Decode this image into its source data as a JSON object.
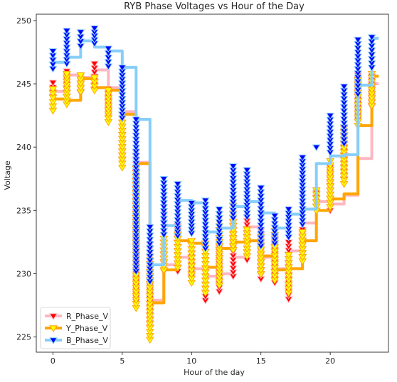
{
  "chart_data": {
    "type": "line",
    "title": "RYB Phase Voltages vs Hour of the Day",
    "xlabel": "Hour of the day",
    "ylabel": "Voltage",
    "xlim": [
      -1.2,
      24.2
    ],
    "ylim": [
      223.8,
      250.5
    ],
    "xticks": [
      0,
      5,
      10,
      15,
      20
    ],
    "yticks": [
      225,
      230,
      235,
      240,
      245,
      250
    ],
    "grid": false,
    "legend_position": "lower-left",
    "x": [
      0,
      1,
      2,
      3,
      4,
      5,
      6,
      7,
      8,
      9,
      10,
      11,
      12,
      13,
      14,
      15,
      16,
      17,
      18,
      19,
      20,
      21,
      22,
      23
    ],
    "series": [
      {
        "name": "R_Phase_V",
        "line_color": "#ffb6c1",
        "marker_color": "#ff0000",
        "marker": "triangle-down",
        "values": [
          244.4,
          245.7,
          245.5,
          246.1,
          244.7,
          242.8,
          238.8,
          227.9,
          230.7,
          231.3,
          230.4,
          229.8,
          230.0,
          231.3,
          233.7,
          231.3,
          230.4,
          231.8,
          234.0,
          235.7,
          235.5,
          236.2,
          239.1,
          245.0
        ],
        "ranges": [
          [
            244,
            245.1
          ],
          [
            243.7,
            246
          ],
          [
            244.3,
            245.6
          ],
          [
            244.6,
            246.6
          ],
          [
            242.5,
            244.6
          ],
          [
            239,
            242.6
          ],
          [
            227.8,
            239.6
          ],
          [
            225.8,
            232.3
          ],
          [
            230.2,
            234.7
          ],
          [
            230.2,
            233.8
          ],
          [
            229.8,
            232.6
          ],
          [
            227.9,
            232.4
          ],
          [
            228.6,
            232.4
          ],
          [
            229.8,
            235.7
          ],
          [
            231.1,
            234.5
          ],
          [
            229.6,
            233.4
          ],
          [
            229.3,
            232.9
          ],
          [
            228,
            232.5
          ],
          [
            231.3,
            233.5
          ],
          [
            235,
            236.4
          ],
          [
            235,
            238.4
          ],
          [
            237.5,
            241.6
          ],
          [
            242.2,
            245.7
          ],
          [
            243.2,
            245.6
          ]
        ]
      },
      {
        "name": "Y_Phase_V",
        "line_color": "#ffa500",
        "marker_color": "#ffff00",
        "marker": "triangle-down",
        "values": [
          243.8,
          243.7,
          245.4,
          244.7,
          244.5,
          242.6,
          238.7,
          227.7,
          230.3,
          232.6,
          232.4,
          230.5,
          232.0,
          232.5,
          232.6,
          231.4,
          230.3,
          230.4,
          232.6,
          235.0,
          235.9,
          236.3,
          241.7,
          245.6
        ],
        "ranges": [
          [
            242.9,
            244.6
          ],
          [
            243.4,
            245.8
          ],
          [
            244.4,
            245.7
          ],
          [
            244.5,
            245.5
          ],
          [
            242,
            244.5
          ],
          [
            238.4,
            242.6
          ],
          [
            227.3,
            238.3
          ],
          [
            224.8,
            231.4
          ],
          [
            230.3,
            233.1
          ],
          [
            230.5,
            233.1
          ],
          [
            229.3,
            232.6
          ],
          [
            228.5,
            232.4
          ],
          [
            229.1,
            234.4
          ],
          [
            231.9,
            235.4
          ],
          [
            231.4,
            233.5
          ],
          [
            230,
            232.9
          ],
          [
            229.5,
            233.4
          ],
          [
            228.5,
            231.5
          ],
          [
            231,
            233.3
          ],
          [
            235,
            236.6
          ],
          [
            235.3,
            238.9
          ],
          [
            237.1,
            241.5
          ],
          [
            241.7,
            245.3
          ],
          [
            243.3,
            245.8
          ]
        ]
      },
      {
        "name": "B_Phase_V",
        "line_color": "#87cefa",
        "marker_color": "#0000ff",
        "marker": "triangle-down",
        "values": [
          246.7,
          247.1,
          248.4,
          247.9,
          247.6,
          246.3,
          242.2,
          230.7,
          233.8,
          235.8,
          235.6,
          233.3,
          233.6,
          235.3,
          235.7,
          234.8,
          233.6,
          234.7,
          235.1,
          238.7,
          239.3,
          239.4,
          244.9,
          248.6
        ],
        "ranges": [
          [
            246.2,
            247.6
          ],
          [
            246.6,
            249.2
          ],
          [
            248,
            249.1
          ],
          [
            248.2,
            249.4
          ],
          [
            246.4,
            247.8
          ],
          [
            242.3,
            246.3
          ],
          [
            230.2,
            242.2
          ],
          [
            229.4,
            233.7
          ],
          [
            233.1,
            237.5
          ],
          [
            233,
            237.1
          ],
          [
            233.2,
            235.6
          ],
          [
            232,
            235.8
          ],
          [
            232.4,
            235.1
          ],
          [
            234.4,
            238.5
          ],
          [
            234.5,
            238.2
          ],
          [
            232.2,
            236.8
          ],
          [
            232.4,
            234.6
          ],
          [
            232.9,
            235.1
          ],
          [
            233.9,
            239.2
          ],
          [
            240,
            240
          ],
          [
            239.6,
            242.5
          ],
          [
            240.3,
            244.8
          ],
          [
            244.2,
            248.5
          ],
          [
            246.3,
            248.7
          ]
        ]
      }
    ]
  }
}
